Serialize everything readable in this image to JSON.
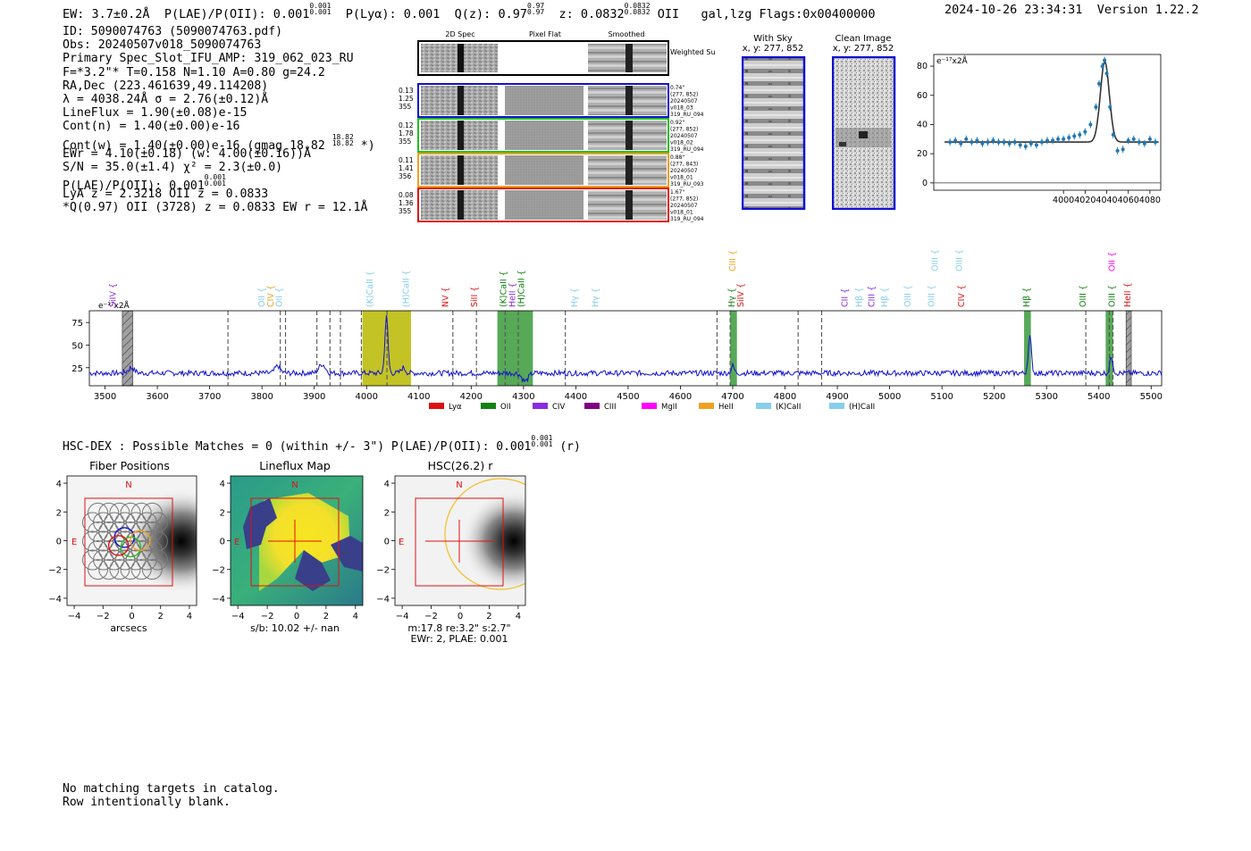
{
  "header": {
    "ew": "EW: 3.7±0.2Å",
    "plae_label": "P(LAE)/P(OII): 0.001",
    "plae_sup": [
      "0.001",
      "0.001"
    ],
    "plya": "P(Lyα): 0.001",
    "qz_label": "Q(z): 0.97",
    "qz_sup": [
      "0.97",
      "0.97"
    ],
    "z_label": "z: 0.0832",
    "z_sup": [
      "0.0832",
      "0.0832"
    ],
    "line": "OII",
    "flags_text": "gal,lzg   Flags:0x00400000",
    "timestamp": "2024-10-26 23:34:31",
    "version": "Version 1.22.2"
  },
  "info": {
    "id": "ID: 5090074763 (5090074763.pdf)",
    "obs": "Obs: 20240507v018_5090074763",
    "primary": "Primary Spec_Slot_IFU_AMP: 319_062_023_RU",
    "fwhm": "F=*3.2\"*  T=0.158  N=1.10  A=0.80  g=24.2",
    "radec": "RA,Dec (223.461639,49.114208)",
    "lambda": "λ = 4038.24Å  σ = 2.76(±0.12)Å",
    "lineflux": "LineFlux = 1.90(±0.08)e-15",
    "contn": "Cont(n) = 1.40(±0.00)e-16",
    "contw": "Cont(w) = 1.40(±0.00)e-16 (gmag 18.82",
    "contw_sup": [
      "18.82",
      "18.82"
    ],
    "contw_end": "*)",
    "ewr": "EWr = 4.10(±0.18) (w: 4.00(±0.16))Å",
    "sn": "S/N = 35.0(±1.4)  χ² = 2.3(±0.0)",
    "plae": "P(LAE)/P(OII): 0.001",
    "plae_sup": [
      "0.001",
      "0.001"
    ],
    "lya": "LyA z = 2.3218   OII z = 0.0833",
    "q": "*Q(0.97) OII (3728) z = 0.0833  EW r = 12.1Å"
  },
  "cutouts": {
    "col_titles": [
      "2D Spec",
      "Pixel Flat",
      "Smoothed"
    ],
    "weighted_label": "Weighted Sum",
    "rows": [
      {
        "vals": [
          "0.13",
          "1.25",
          "355"
        ],
        "meta": [
          "0.74\"",
          "(277, 852)",
          "20240507",
          "v018_03",
          "319_RU_094"
        ],
        "color": "#1010d0"
      },
      {
        "vals": [
          "0.12",
          "1.78",
          "355"
        ],
        "meta": [
          "0.92\"",
          "(277, 852)",
          "20240507",
          "v018_02",
          "319_RU_094"
        ],
        "color": "#20c020"
      },
      {
        "vals": [
          "0.11",
          "1.41",
          "356"
        ],
        "meta": [
          "0.88\"",
          "(277, 843)",
          "20240507",
          "v018_01",
          "319_RU_093"
        ],
        "color": "#f0a020"
      },
      {
        "vals": [
          "0.08",
          "1.36",
          "355"
        ],
        "meta": [
          "1.67\"",
          "(277, 852)",
          "20240507",
          "v018_01",
          "319_RU_094"
        ],
        "color": "#e01010"
      }
    ],
    "with_sky_title": "With Sky",
    "with_sky_coords": "x, y: 277, 852",
    "clean_title": "Clean Image",
    "clean_coords": "x, y: 277, 852"
  },
  "chart_data": [
    {
      "type": "scatter",
      "name": "line-fit",
      "unit_label": "e⁻¹⁷x2Å",
      "xlim": [
        3880,
        4090
      ],
      "ylim": [
        -5,
        88
      ],
      "xticks": [
        4000,
        4020,
        4040,
        4060,
        4080
      ],
      "yticks": [
        0,
        20,
        40,
        60,
        80
      ],
      "points": {
        "x": [
          3895,
          3900,
          3905,
          3910,
          3915,
          3920,
          3925,
          3930,
          3935,
          3940,
          3945,
          3950,
          3955,
          3960,
          3965,
          3970,
          3975,
          3980,
          3985,
          3990,
          3995,
          4000,
          4005,
          4010,
          4015,
          4020,
          4025,
          4030,
          4033,
          4036,
          4038,
          4040,
          4043,
          4046,
          4050,
          4055,
          4060,
          4065,
          4070,
          4075,
          4080,
          4085
        ],
        "y": [
          28,
          29,
          27,
          30,
          28,
          29,
          27,
          28,
          29,
          28,
          28,
          27,
          28,
          26,
          25,
          27,
          26,
          28,
          29,
          29,
          30,
          30,
          31,
          32,
          33,
          35,
          40,
          52,
          68,
          80,
          84,
          75,
          52,
          33,
          22,
          23,
          29,
          30,
          28,
          27,
          30,
          28
        ]
      },
      "fit": {
        "center": 4038.24,
        "sigma": 2.76,
        "amplitude": 55,
        "continuum": 28
      }
    },
    {
      "type": "line",
      "name": "full-spectrum",
      "unit_label": "e⁻¹⁷x2Å",
      "xlim": [
        3470,
        5520
      ],
      "ylim": [
        5,
        88
      ],
      "xticks": [
        3500,
        3600,
        3700,
        3800,
        3900,
        4000,
        4100,
        4200,
        4300,
        4400,
        4500,
        4600,
        4700,
        4800,
        4900,
        5000,
        5100,
        5200,
        5300,
        5400,
        5500
      ],
      "yticks": [
        25,
        50,
        75
      ],
      "continuum": 19,
      "emission": [
        {
          "x": 4038,
          "amp": 62,
          "w": 3
        },
        {
          "x": 3830,
          "amp": 8,
          "w": 5
        },
        {
          "x": 3915,
          "amp": 10,
          "w": 6
        },
        {
          "x": 4070,
          "amp": 6,
          "w": 4
        },
        {
          "x": 4303,
          "amp": -9,
          "w": 6
        },
        {
          "x": 4700,
          "amp": 8,
          "w": 3
        },
        {
          "x": 5268,
          "amp": 40,
          "w": 3
        },
        {
          "x": 5424,
          "amp": 18,
          "w": 3
        },
        {
          "x": 3550,
          "amp": 6,
          "w": 6
        }
      ],
      "dashed_lines": [
        3735,
        3835,
        3845,
        3905,
        3930,
        3950,
        3990,
        4039,
        4165,
        4210,
        4265,
        4290,
        4380,
        4670,
        4695,
        4825,
        4870,
        5375,
        5420,
        5427
      ],
      "bands": [
        {
          "from": 3992,
          "to": 4085,
          "color": "#b8b800"
        },
        {
          "from": 4250,
          "to": 4318,
          "color": "#3a9a3a"
        },
        {
          "from": 4695,
          "to": 4708,
          "color": "#3a9a3a"
        },
        {
          "from": 5257,
          "to": 5270,
          "color": "#3a9a3a"
        },
        {
          "from": 5413,
          "to": 5427,
          "color": "#3a9a3a"
        }
      ],
      "hatched": [
        {
          "from": 3533,
          "to": 3553
        },
        {
          "from": 5452,
          "to": 5462
        }
      ],
      "line_labels": [
        {
          "text": "SiIV",
          "x": 3515,
          "tier": 1,
          "color": "#8a2be2"
        },
        {
          "text": "OII",
          "x": 3800,
          "tier": 1,
          "color": "#87ceeb"
        },
        {
          "text": "CIV",
          "x": 3817,
          "tier": 1,
          "color": "#f0a020"
        },
        {
          "text": "OII",
          "x": 3833,
          "tier": 1,
          "color": "#87ceeb"
        },
        {
          "text": "(K)CaII",
          "x": 4006,
          "tier": 1,
          "color": "#87ceeb"
        },
        {
          "text": "(H)CaII",
          "x": 4076,
          "tier": 1,
          "color": "#87ceeb"
        },
        {
          "text": "NV",
          "x": 4151,
          "tier": 1,
          "color": "#e01010"
        },
        {
          "text": "SiII",
          "x": 4206,
          "tier": 1,
          "color": "#e01010"
        },
        {
          "text": "(K)CaII",
          "x": 4262,
          "tier": 1,
          "color": "#128212"
        },
        {
          "text": "HeII",
          "x": 4279,
          "tier": 1,
          "color": "#8a2be2"
        },
        {
          "text": "(H)CaII",
          "x": 4296,
          "tier": 1,
          "color": "#128212"
        },
        {
          "text": "Hγ",
          "x": 4398,
          "tier": 1,
          "color": "#87ceeb"
        },
        {
          "text": "Hγ",
          "x": 4438,
          "tier": 1,
          "color": "#87ceeb"
        },
        {
          "text": "SiIV",
          "x": 4715,
          "tier": 1,
          "color": "#e01010"
        },
        {
          "text": "Hγ",
          "x": 4698,
          "tier": 1,
          "color": "#128212"
        },
        {
          "text": "CIII",
          "x": 4700,
          "tier": 2,
          "color": "#f0a020"
        },
        {
          "text": "CII",
          "x": 4914,
          "tier": 1,
          "color": "#8a2be2"
        },
        {
          "text": "Hβ",
          "x": 4942,
          "tier": 1,
          "color": "#87ceeb"
        },
        {
          "text": "CIII",
          "x": 4966,
          "tier": 1,
          "color": "#8a2be2"
        },
        {
          "text": "Hβ",
          "x": 4990,
          "tier": 1,
          "color": "#87ceeb"
        },
        {
          "text": "OIII",
          "x": 5035,
          "tier": 1,
          "color": "#87ceeb"
        },
        {
          "text": "OIII",
          "x": 5080,
          "tier": 1,
          "color": "#87ceeb"
        },
        {
          "text": "OIII",
          "x": 5087,
          "tier": 2,
          "color": "#87ceeb"
        },
        {
          "text": "OIII",
          "x": 5133,
          "tier": 2,
          "color": "#87ceeb"
        },
        {
          "text": "CIV",
          "x": 5137,
          "tier": 1,
          "color": "#e01010"
        },
        {
          "text": "Hβ",
          "x": 5262,
          "tier": 1,
          "color": "#128212"
        },
        {
          "text": "OIII",
          "x": 5370,
          "tier": 1,
          "color": "#128212"
        },
        {
          "text": "OIII",
          "x": 5425,
          "tier": 1,
          "color": "#128212"
        },
        {
          "text": "OII",
          "x": 5425,
          "tier": 2,
          "color": "#ff00ff"
        },
        {
          "text": "HeII",
          "x": 5455,
          "tier": 1,
          "color": "#e01010"
        }
      ],
      "legend": [
        {
          "label": "Lyα",
          "color": "#e01010"
        },
        {
          "label": "OII",
          "color": "#128212"
        },
        {
          "label": "CIV",
          "color": "#8a2be2"
        },
        {
          "label": "CIII",
          "color": "#800080"
        },
        {
          "label": "MgII",
          "color": "#ff00ff"
        },
        {
          "label": "HeII",
          "color": "#f0a020"
        },
        {
          "label": "(K)CaII",
          "color": "#87ceeb"
        },
        {
          "label": "(H)CaII",
          "color": "#87ceeb"
        }
      ]
    },
    {
      "type": "heatmap",
      "name": "fiber-positions",
      "title": "Fiber Positions",
      "xlabel": "arcsecs",
      "xlim": [
        -4.5,
        4.5
      ],
      "ylim": [
        -4.5,
        4.5
      ],
      "ticks": [
        -4,
        -2,
        0,
        2,
        4
      ],
      "compass": {
        "north": "N",
        "east": "E"
      }
    },
    {
      "type": "heatmap",
      "name": "lineflux-map",
      "title": "Lineflux Map",
      "xlabel": "s/b: 10.02 +/- nan",
      "xlim": [
        -4.5,
        4.5
      ],
      "ylim": [
        -4.5,
        4.5
      ],
      "ticks": [
        -4,
        -2,
        0,
        2,
        4
      ],
      "compass": {
        "north": "N",
        "east": "E"
      }
    },
    {
      "type": "heatmap",
      "name": "hsc-r",
      "title": "HSC(26.2) r",
      "xlabel": "m:17.8  re:3.2\"  s:2.7\"",
      "xlabel2": "EWr: 2, PLAE: 0.001",
      "xlim": [
        -4.5,
        4.5
      ],
      "ylim": [
        -4.5,
        4.5
      ],
      "ticks": [
        -4,
        -2,
        0,
        2,
        4
      ],
      "compass": {
        "north": "N",
        "east": "E"
      }
    }
  ],
  "hsc_dex": {
    "text": "HSC-DEX : Possible Matches = 0 (within +/- 3\")  P(LAE)/P(OII): 0.001",
    "sup": [
      "0.001",
      "0.001"
    ],
    "band": "(r)"
  },
  "footer": {
    "line1": "No matching targets in catalog.",
    "line2": "Row intentionally blank."
  }
}
